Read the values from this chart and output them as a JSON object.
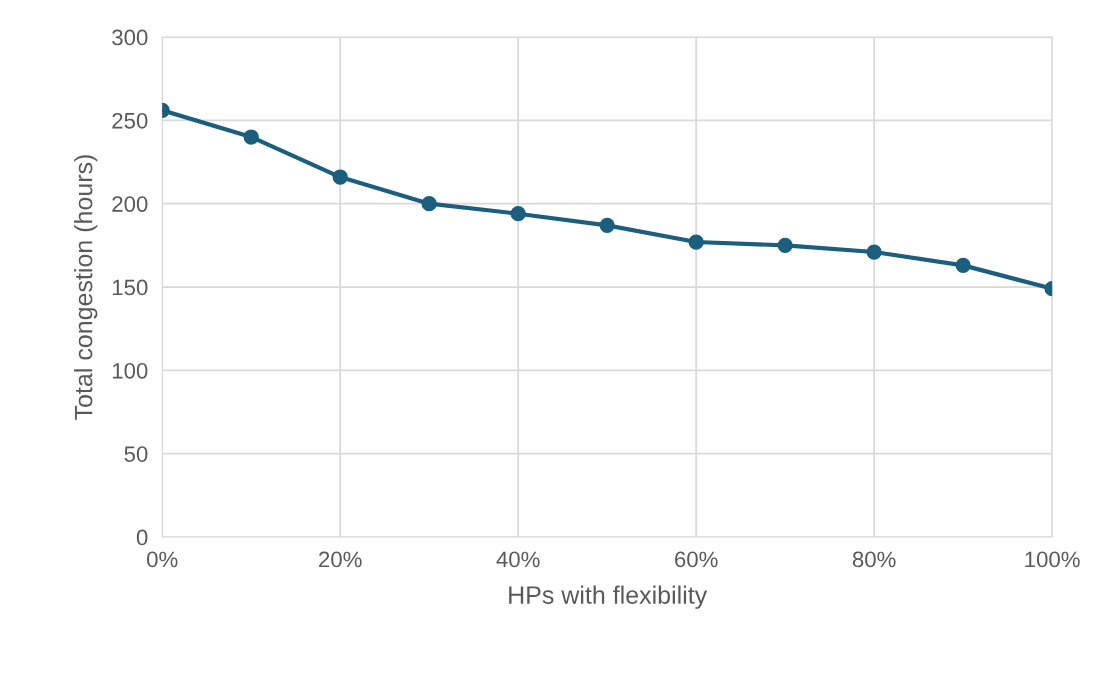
{
  "chart_data": {
    "type": "line",
    "xlabel": "HPs with flexibility",
    "ylabel": "Total congestion (hours)",
    "x": [
      0,
      10,
      20,
      30,
      40,
      50,
      60,
      70,
      80,
      90,
      100
    ],
    "series": [
      {
        "color": "#1b5e7e",
        "values": [
          256,
          240,
          216,
          200,
          194,
          187,
          177,
          175,
          171,
          163,
          149
        ]
      }
    ],
    "xlim": [
      0,
      100
    ],
    "xticks": [
      {
        "value": 0,
        "label": "0%"
      },
      {
        "value": 20,
        "label": "20%"
      },
      {
        "value": 40,
        "label": "40%"
      },
      {
        "value": 60,
        "label": "60%"
      },
      {
        "value": 80,
        "label": "80%"
      },
      {
        "value": 100,
        "label": "100%"
      }
    ],
    "ylim": [
      0,
      300
    ],
    "yticks": [
      0,
      50,
      100,
      150,
      200,
      250,
      300
    ],
    "grid": true,
    "marker": "circle",
    "line_style": "solid"
  }
}
